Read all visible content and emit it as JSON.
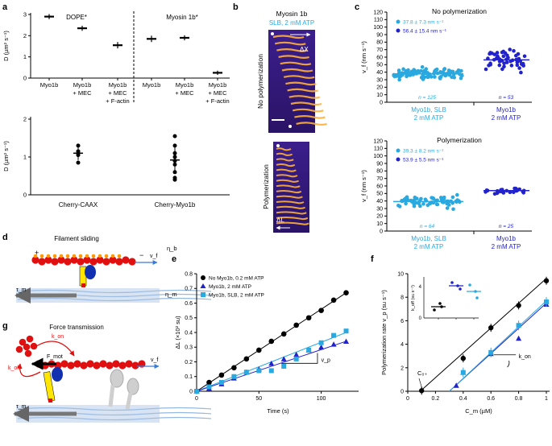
{
  "panels": {
    "a": {
      "letter": "a",
      "top_group_dope": "DOPE*",
      "top_group_myosin": "Myosin 1b*",
      "ylabel": "D (µm² s⁻¹)",
      "yticks": [
        "0",
        "1",
        "2",
        "3"
      ],
      "cond_labels": [
        [
          "Myo1b"
        ],
        [
          "Myo1b",
          "+ MEC"
        ],
        [
          "Myo1b",
          "+ MEC",
          "+ F-actin"
        ],
        [
          "Myo1b"
        ],
        [
          "Myo1b",
          "+ MEC"
        ],
        [
          "Myo1b",
          "+ MEC",
          "+ F-actin"
        ]
      ],
      "bottom_yticks": [
        "0",
        "1",
        "2"
      ],
      "bottom_labels": [
        "Cherry-CAAX",
        "Cherry-Myo1b"
      ]
    },
    "b": {
      "letter": "b",
      "title": "Myosin 1b",
      "subtitle": "SLB, 2 mM ATP",
      "row1": "No polymerization",
      "row2": "Polymerization",
      "dx": "ΔX",
      "dl": "ΔL"
    },
    "c": {
      "letter": "c",
      "title1": "No polymerization",
      "title2": "Polymerization",
      "ylabel": "v_f (nm s⁻¹)",
      "yticks": [
        "0",
        "10",
        "20",
        "30",
        "40",
        "50",
        "60",
        "70",
        "80",
        "90",
        "100",
        "110",
        "120"
      ],
      "legend1a": "37.8 ± 7.3 nm s⁻¹",
      "legend1b": "56.4 ± 15.4 nm s⁻¹",
      "legend2a": "39.3 ± 8.2 nm s⁻¹",
      "legend2b": "53.9 ± 5.5 nm s⁻¹",
      "n1a": "n = 125",
      "n1b": "n = 53",
      "n2a": "n = 64",
      "n2b": "n = 25",
      "xl_a": [
        "Myo1b, SLB",
        "2 mM ATP"
      ],
      "xl_b": [
        "Myo1b",
        "2 mM ATP"
      ]
    },
    "d": {
      "letter": "d",
      "title": "Filament sliding",
      "vf": "v_f",
      "eta_b": "η_b",
      "eta_m": "η_m",
      "tau_m": "τ_m",
      "plus": "+",
      "minus": "−"
    },
    "e": {
      "letter": "e",
      "ylabel": "ΔL (×10² su)",
      "xlabel": "Time (s)",
      "legend": [
        "No Myo1b, 0.2 mM ATP",
        "Myo1b, 2 mM ATP",
        "Myo1b, SLB, 2 mM ATP"
      ],
      "xticks": [
        "0",
        "50",
        "100"
      ],
      "yticks": [
        "0",
        "0.1",
        "0.2",
        "0.3",
        "0.4",
        "0.5",
        "0.6",
        "0.7",
        "0.8"
      ],
      "vp": "v_p"
    },
    "f": {
      "letter": "f",
      "ylabel": "Polymerization rate v_p (su s⁻¹)",
      "xlabel": "C_m (µM)",
      "xticks": [
        "0",
        "0.2",
        "0.4",
        "0.6",
        "0.8",
        "1"
      ],
      "yticks": [
        "0",
        "2",
        "4",
        "6",
        "8",
        "10"
      ],
      "c0": "C₀₊",
      "kon": "k_on",
      "inset_ylabel": "k_off (su s⁻¹)",
      "inset_yticks": [
        "0",
        "4"
      ]
    },
    "g": {
      "letter": "g",
      "title": "Force transmission",
      "kon": "k_on",
      "koff": "k_off",
      "fmot": "F_mot",
      "vf": "v_f",
      "tau_m": "τ_m"
    }
  },
  "colors": {
    "black": "#000000",
    "blue": "#2222cc",
    "cyan": "#29a9e0",
    "red": "#e01010",
    "yellow": "#ffe600",
    "myosin": "#1030b0",
    "grey": "#888888"
  },
  "chart_data": [
    {
      "type": "scatter",
      "panel": "a-top",
      "ylim": [
        0,
        3
      ],
      "categories": [
        "Myo1b",
        "Myo1b + MEC",
        "Myo1b + MEC + F-actin",
        "Myo1b",
        "Myo1b + MEC",
        "Myo1b + MEC + F-actin"
      ],
      "values": [
        2.9,
        2.35,
        1.55,
        1.85,
        1.9,
        0.25
      ],
      "errors": [
        0.12,
        0.12,
        0.15,
        0.15,
        0.12,
        0.1
      ]
    },
    {
      "type": "scatter",
      "panel": "a-bottom",
      "ylim": [
        0,
        2
      ],
      "categories": [
        "Cherry-CAAX",
        "Cherry-Myo1b"
      ],
      "points": [
        [
          1.3,
          1.15,
          1.1,
          1.05,
          0.85
        ],
        [
          1.55,
          1.3,
          1.1,
          1.0,
          0.9,
          0.8,
          0.6,
          0.45,
          0.4
        ]
      ],
      "means": [
        1.1,
        0.92
      ],
      "sd": [
        0.18,
        0.35
      ]
    },
    {
      "type": "scatter",
      "panel": "c-top",
      "ylim": [
        0,
        120
      ],
      "series": [
        {
          "name": "Myo1b, SLB, 2 mM ATP",
          "mean": 37.8,
          "n": 125
        },
        {
          "name": "Myo1b, 2 mM ATP",
          "mean": 56.4,
          "n": 53
        }
      ]
    },
    {
      "type": "scatter",
      "panel": "c-bottom",
      "ylim": [
        0,
        120
      ],
      "series": [
        {
          "name": "Myo1b, SLB, 2 mM ATP",
          "mean": 39.3,
          "n": 64
        },
        {
          "name": "Myo1b, 2 mM ATP",
          "mean": 53.9,
          "n": 25
        }
      ]
    },
    {
      "type": "line",
      "panel": "e",
      "xlim": [
        0,
        130
      ],
      "ylim": [
        0,
        0.8
      ],
      "series": [
        {
          "name": "No Myo1b, 0.2 mM ATP",
          "x": [
            0,
            10,
            20,
            30,
            40,
            50,
            60,
            70,
            80,
            90,
            100,
            110,
            120
          ],
          "y": [
            0,
            0.06,
            0.11,
            0.16,
            0.22,
            0.28,
            0.34,
            0.39,
            0.45,
            0.5,
            0.55,
            0.62,
            0.67
          ]
        },
        {
          "name": "Myo1b, 2 mM ATP",
          "x": [
            0,
            10,
            20,
            30,
            40,
            50,
            60,
            70,
            80,
            90,
            100,
            110,
            120
          ],
          "y": [
            0,
            0.02,
            0.05,
            0.09,
            0.13,
            0.15,
            0.19,
            0.22,
            0.25,
            0.28,
            0.3,
            0.32,
            0.34
          ]
        },
        {
          "name": "Myo1b, SLB, 2 mM ATP",
          "x": [
            0,
            10,
            20,
            30,
            40,
            50,
            60,
            70,
            80,
            90,
            100,
            110,
            120
          ],
          "y": [
            0,
            0.03,
            0.06,
            0.1,
            0.13,
            0.14,
            0.14,
            0.17,
            0.22,
            0.28,
            0.33,
            0.38,
            0.41
          ]
        }
      ]
    },
    {
      "type": "line",
      "panel": "f",
      "xlim": [
        0,
        1
      ],
      "ylim": [
        0,
        10
      ],
      "series": [
        {
          "name": "black",
          "x": [
            0.1,
            0.4,
            0.6,
            0.8,
            1.0
          ],
          "y": [
            0.05,
            2.8,
            5.4,
            7.3,
            9.4
          ]
        },
        {
          "name": "blue",
          "x": [
            0.35,
            0.4,
            0.6,
            0.8,
            1.0
          ],
          "y": [
            0.5,
            1.6,
            3.2,
            4.5,
            7.4
          ]
        },
        {
          "name": "cyan",
          "x": [
            0.4,
            0.6,
            0.8,
            1.0
          ],
          "y": [
            1.6,
            3.3,
            5.6,
            7.6
          ]
        }
      ]
    }
  ]
}
